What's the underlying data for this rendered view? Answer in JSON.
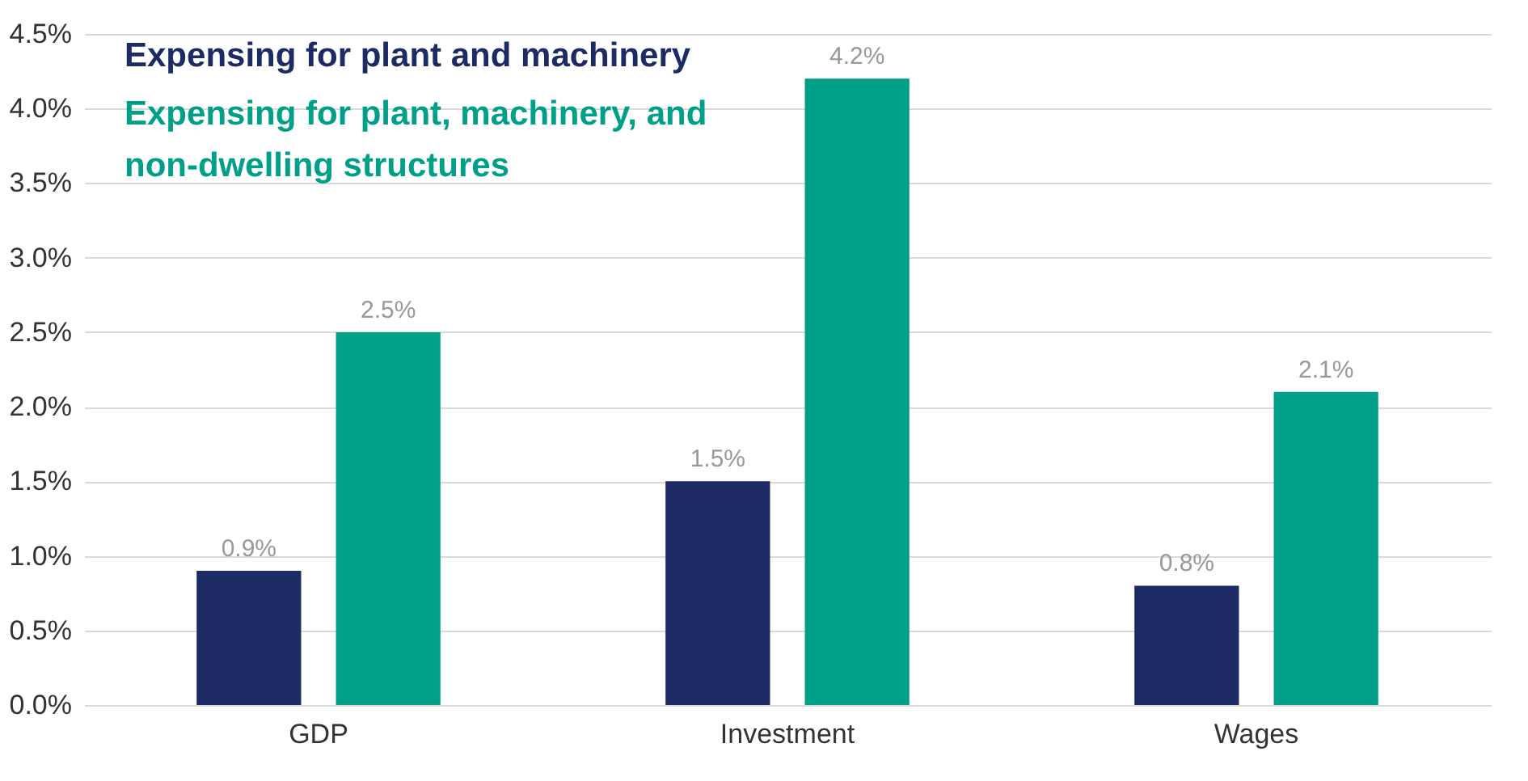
{
  "chart_data": {
    "type": "bar",
    "categories": [
      "GDP",
      "Investment",
      "Wages"
    ],
    "series": [
      {
        "name": "Expensing for plant and machinery",
        "color": "#1c2b64",
        "values": [
          0.9,
          1.5,
          0.8
        ],
        "value_labels": [
          "0.9%",
          "1.5%",
          "0.8%"
        ]
      },
      {
        "name": "Expensing for plant, machinery, and non-dwelling structures",
        "color": "#00a088",
        "values": [
          2.5,
          4.2,
          2.1
        ],
        "value_labels": [
          "2.5%",
          "4.2%",
          "2.1%"
        ]
      }
    ],
    "ylim": [
      0,
      4.5
    ],
    "yticks": [
      {
        "value": 0,
        "label": "0.0%"
      },
      {
        "value": 0.5,
        "label": "0.5%"
      },
      {
        "value": 1,
        "label": "1.0%"
      },
      {
        "value": 1.5,
        "label": "1.5%"
      },
      {
        "value": 2,
        "label": "2.0%"
      },
      {
        "value": 2.5,
        "label": "2.5%"
      },
      {
        "value": 3,
        "label": "3.0%"
      },
      {
        "value": 3.5,
        "label": "3.5%"
      },
      {
        "value": 4,
        "label": "4.0%"
      },
      {
        "value": 4.5,
        "label": "4.5%"
      }
    ],
    "grid": "y",
    "legend": "top left"
  }
}
